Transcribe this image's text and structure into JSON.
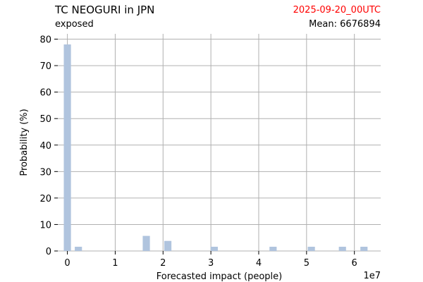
{
  "header": {
    "title": "TC NEOGURI in JPN",
    "subtitle": "exposed",
    "date": "2025-09-20_00UTC",
    "mean": "Mean: 6676894"
  },
  "colors": {
    "bar": "#b0c4de",
    "grid": "#b0b0b0",
    "date_text": "#ff0000"
  },
  "chart_data": {
    "type": "bar",
    "title": "TC NEOGURI in JPN",
    "xlabel": "Forecasted impact (people)",
    "ylabel": "Probability (%)",
    "x_scale_label": "1e7",
    "xlim": [
      -0.2,
      6.55
    ],
    "ylim": [
      0,
      82
    ],
    "grid": true,
    "x_ticks": [
      0,
      1,
      2,
      3,
      4,
      5,
      6
    ],
    "y_ticks": [
      0,
      10,
      20,
      30,
      40,
      50,
      60,
      70,
      80
    ],
    "bin_width": 0.15,
    "bars": [
      {
        "x": 0.0,
        "value": 78
      },
      {
        "x": 0.23,
        "value": 1.6
      },
      {
        "x": 1.65,
        "value": 5.7
      },
      {
        "x": 2.1,
        "value": 3.8
      },
      {
        "x": 3.07,
        "value": 1.6
      },
      {
        "x": 4.3,
        "value": 1.6
      },
      {
        "x": 5.1,
        "value": 1.6
      },
      {
        "x": 5.75,
        "value": 1.6
      },
      {
        "x": 6.2,
        "value": 1.6
      }
    ]
  }
}
